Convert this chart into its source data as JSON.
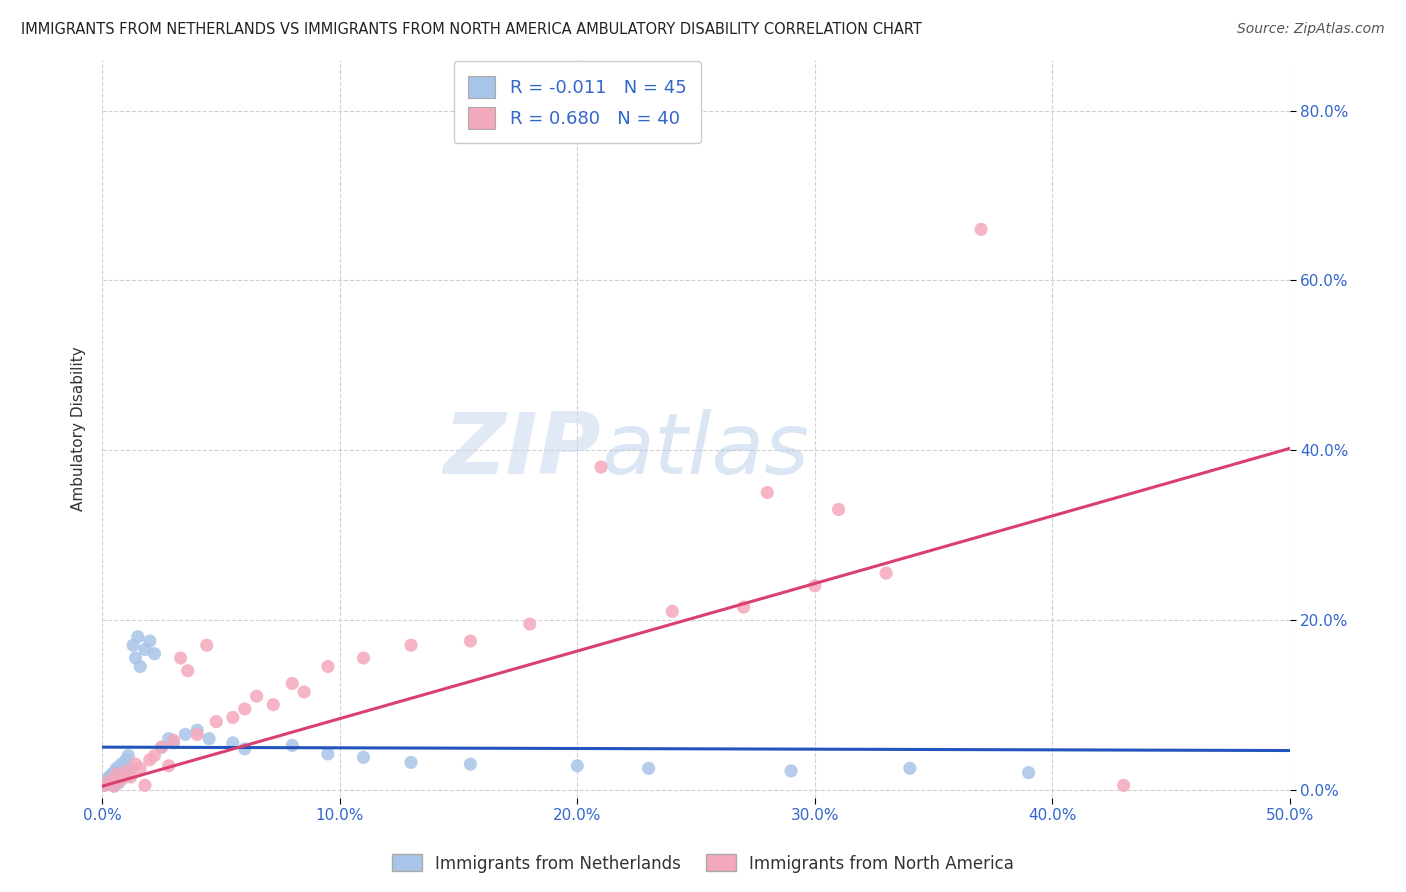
{
  "title": "IMMIGRANTS FROM NETHERLANDS VS IMMIGRANTS FROM NORTH AMERICA AMBULATORY DISABILITY CORRELATION CHART",
  "source": "Source: ZipAtlas.com",
  "ylabel": "Ambulatory Disability",
  "legend_label1": "Immigrants from Netherlands",
  "legend_label2": "Immigrants from North America",
  "R1": -0.011,
  "N1": 45,
  "R2": 0.68,
  "N2": 40,
  "xlim": [
    0.0,
    0.5
  ],
  "ylim": [
    -0.01,
    0.86
  ],
  "xticks": [
    0.0,
    0.1,
    0.2,
    0.3,
    0.4,
    0.5
  ],
  "yticks": [
    0.0,
    0.2,
    0.4,
    0.6,
    0.8
  ],
  "xlabel_labels": [
    "0.0%",
    "10.0%",
    "20.0%",
    "30.0%",
    "40.0%",
    "50.0%"
  ],
  "ylabel_labels": [
    "0.0%",
    "20.0%",
    "40.0%",
    "60.0%",
    "80.0%"
  ],
  "color1": "#a8c4e8",
  "color2": "#f4a8bb",
  "trendline_color1": "#2255bb",
  "trendline_color2": "#d94070",
  "background_color": "#ffffff",
  "watermark_zip": "ZIP",
  "watermark_atlas": "atlas",
  "blue_scatter_x": [
    0.001,
    0.002,
    0.002,
    0.003,
    0.003,
    0.004,
    0.004,
    0.005,
    0.005,
    0.006,
    0.006,
    0.007,
    0.007,
    0.008,
    0.008,
    0.009,
    0.01,
    0.01,
    0.011,
    0.012,
    0.013,
    0.014,
    0.015,
    0.016,
    0.018,
    0.02,
    0.022,
    0.025,
    0.028,
    0.03,
    0.035,
    0.04,
    0.045,
    0.055,
    0.06,
    0.08,
    0.095,
    0.11,
    0.13,
    0.155,
    0.2,
    0.23,
    0.29,
    0.34,
    0.39
  ],
  "blue_scatter_y": [
    0.005,
    0.008,
    0.012,
    0.006,
    0.015,
    0.01,
    0.018,
    0.004,
    0.02,
    0.012,
    0.025,
    0.008,
    0.022,
    0.016,
    0.03,
    0.018,
    0.035,
    0.015,
    0.04,
    0.025,
    0.17,
    0.155,
    0.18,
    0.145,
    0.165,
    0.175,
    0.16,
    0.05,
    0.06,
    0.055,
    0.065,
    0.07,
    0.06,
    0.055,
    0.048,
    0.052,
    0.042,
    0.038,
    0.032,
    0.03,
    0.028,
    0.025,
    0.022,
    0.025,
    0.02
  ],
  "pink_scatter_x": [
    0.001,
    0.003,
    0.005,
    0.006,
    0.008,
    0.01,
    0.012,
    0.014,
    0.016,
    0.018,
    0.02,
    0.022,
    0.025,
    0.028,
    0.03,
    0.033,
    0.036,
    0.04,
    0.044,
    0.048,
    0.055,
    0.06,
    0.065,
    0.072,
    0.08,
    0.085,
    0.095,
    0.11,
    0.13,
    0.155,
    0.18,
    0.21,
    0.24,
    0.27,
    0.3,
    0.33,
    0.37,
    0.31,
    0.28,
    0.43
  ],
  "pink_scatter_y": [
    0.005,
    0.01,
    0.004,
    0.018,
    0.012,
    0.022,
    0.015,
    0.03,
    0.025,
    0.005,
    0.035,
    0.04,
    0.05,
    0.028,
    0.058,
    0.155,
    0.14,
    0.065,
    0.17,
    0.08,
    0.085,
    0.095,
    0.11,
    0.1,
    0.125,
    0.115,
    0.145,
    0.155,
    0.17,
    0.175,
    0.195,
    0.38,
    0.21,
    0.215,
    0.24,
    0.255,
    0.66,
    0.33,
    0.35,
    0.005
  ],
  "blue_trend_x": [
    0.0,
    0.5
  ],
  "blue_trend_y": [
    0.05,
    0.046
  ],
  "pink_trend_x": [
    0.0,
    0.5
  ],
  "pink_trend_y": [
    0.004,
    0.402
  ]
}
